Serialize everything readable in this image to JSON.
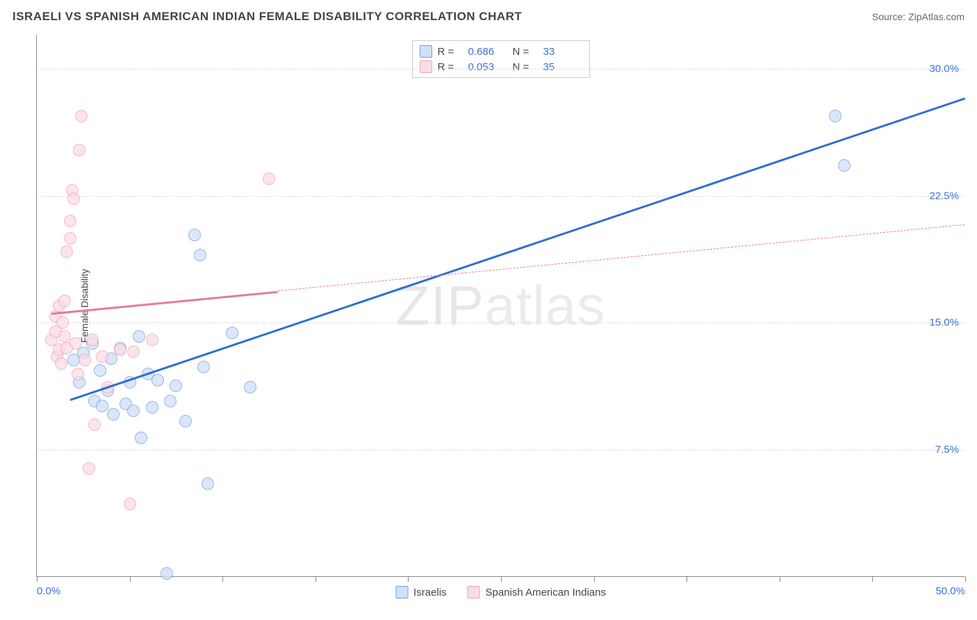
{
  "title": "ISRAELI VS SPANISH AMERICAN INDIAN FEMALE DISABILITY CORRELATION CHART",
  "source_prefix": "Source: ",
  "source_name": "ZipAtlas.com",
  "ylabel": "Female Disability",
  "watermark": "ZIPatlas",
  "chart": {
    "type": "scatter",
    "background_color": "#ffffff",
    "grid_color": "#dddddd",
    "axis_color": "#888888",
    "label_color": "#3b73d1",
    "xlim": [
      0,
      50
    ],
    "ylim": [
      0,
      32
    ],
    "xticks": [
      0,
      5,
      10,
      15,
      20,
      25,
      30,
      35,
      40,
      45,
      50
    ],
    "xtick_labels": {
      "0": "0.0%",
      "50": "50.0%"
    },
    "yticks": [
      7.5,
      15.0,
      22.5,
      30.0
    ],
    "ytick_labels": [
      "7.5%",
      "15.0%",
      "22.5%",
      "30.0%"
    ],
    "marker_radius": 9,
    "marker_stroke_width": 1.5,
    "trend_line_width": 3,
    "series": [
      {
        "name": "Israelis",
        "fill": "#cfe0f7",
        "stroke": "#6f9fe0",
        "line_color": "#2f6fd0",
        "r": "0.686",
        "n": "33",
        "points": [
          [
            2.0,
            12.8
          ],
          [
            2.3,
            11.5
          ],
          [
            2.5,
            13.2
          ],
          [
            3.0,
            13.8
          ],
          [
            3.1,
            10.4
          ],
          [
            3.4,
            12.2
          ],
          [
            3.5,
            10.1
          ],
          [
            3.8,
            11.0
          ],
          [
            4.0,
            12.9
          ],
          [
            4.1,
            9.6
          ],
          [
            4.5,
            13.5
          ],
          [
            4.8,
            10.2
          ],
          [
            5.0,
            11.5
          ],
          [
            5.2,
            9.8
          ],
          [
            5.5,
            14.2
          ],
          [
            5.6,
            8.2
          ],
          [
            6.0,
            12.0
          ],
          [
            6.2,
            10.0
          ],
          [
            6.5,
            11.6
          ],
          [
            7.0,
            0.2
          ],
          [
            7.2,
            10.4
          ],
          [
            7.5,
            11.3
          ],
          [
            8.0,
            9.2
          ],
          [
            8.5,
            20.2
          ],
          [
            8.8,
            19.0
          ],
          [
            9.0,
            12.4
          ],
          [
            9.2,
            5.5
          ],
          [
            10.5,
            14.4
          ],
          [
            11.5,
            11.2
          ],
          [
            43.0,
            27.2
          ],
          [
            43.5,
            24.3
          ]
        ],
        "trend": {
          "x1": 1.8,
          "y1": 10.5,
          "x2": 50.0,
          "y2": 28.3,
          "solid_until_x": 50.0
        }
      },
      {
        "name": "Spanish American Indians",
        "fill": "#fadde4",
        "stroke": "#f19fb4",
        "line_color": "#e97a97",
        "r": "0.053",
        "n": "35",
        "points": [
          [
            0.8,
            14.0
          ],
          [
            1.0,
            15.4
          ],
          [
            1.0,
            14.5
          ],
          [
            1.1,
            13.0
          ],
          [
            1.2,
            16.0
          ],
          [
            1.2,
            13.4
          ],
          [
            1.3,
            12.6
          ],
          [
            1.4,
            15.0
          ],
          [
            1.5,
            16.3
          ],
          [
            1.5,
            14.2
          ],
          [
            1.6,
            19.2
          ],
          [
            1.6,
            13.5
          ],
          [
            1.8,
            21.0
          ],
          [
            1.8,
            20.0
          ],
          [
            1.9,
            22.8
          ],
          [
            2.0,
            22.3
          ],
          [
            2.1,
            13.8
          ],
          [
            2.2,
            12.0
          ],
          [
            2.3,
            25.2
          ],
          [
            2.4,
            27.2
          ],
          [
            2.6,
            12.8
          ],
          [
            2.8,
            6.4
          ],
          [
            3.0,
            14.0
          ],
          [
            3.1,
            9.0
          ],
          [
            3.5,
            13.0
          ],
          [
            3.8,
            11.2
          ],
          [
            4.5,
            13.4
          ],
          [
            5.0,
            4.3
          ],
          [
            5.2,
            13.3
          ],
          [
            6.2,
            14.0
          ],
          [
            12.5,
            23.5
          ]
        ],
        "trend": {
          "x1": 0.8,
          "y1": 15.6,
          "x2": 50.0,
          "y2": 20.8,
          "solid_until_x": 13.0
        }
      }
    ]
  },
  "legend_bottom": [
    {
      "label": "Israelis",
      "fill": "#cfe0f7",
      "stroke": "#6f9fe0"
    },
    {
      "label": "Spanish American Indians",
      "fill": "#fadde4",
      "stroke": "#f19fb4"
    }
  ]
}
